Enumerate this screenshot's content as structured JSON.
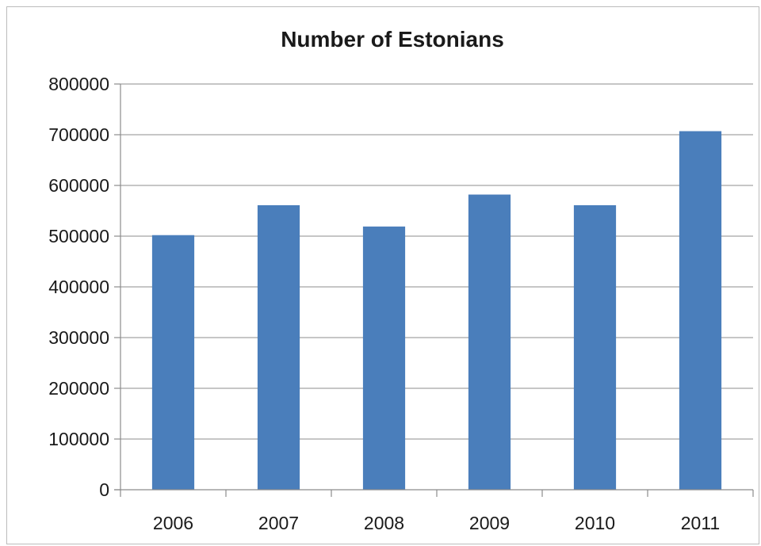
{
  "chart_data": {
    "type": "bar",
    "title": "Number of Estonians",
    "xlabel": "",
    "ylabel": "",
    "categories": [
      "2006",
      "2007",
      "2008",
      "2009",
      "2010",
      "2011"
    ],
    "values": [
      502000,
      561000,
      519000,
      582000,
      561000,
      707000
    ],
    "ylim": [
      0,
      800000
    ],
    "yticks": [
      0,
      100000,
      200000,
      300000,
      400000,
      500000,
      600000,
      700000,
      800000
    ],
    "ytick_labels": [
      "0",
      "100000",
      "200000",
      "300000",
      "400000",
      "500000",
      "600000",
      "700000",
      "800000"
    ],
    "grid": true,
    "legend": "none",
    "bar_color": "#4a7ebb"
  }
}
